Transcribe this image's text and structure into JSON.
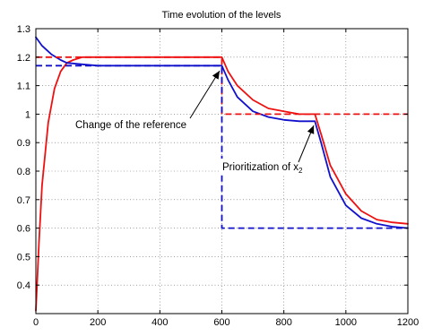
{
  "chart_data": {
    "type": "line",
    "title": "Time evolution of the levels",
    "xlabel": "",
    "ylabel": "",
    "xlim": [
      0,
      1200
    ],
    "ylim": [
      0.3,
      1.3
    ],
    "xticks": [
      "0",
      "200",
      "400",
      "600",
      "800",
      "1000",
      "1200"
    ],
    "yticks": [
      "0.4",
      "0.5",
      "0.6",
      "0.7",
      "0.8",
      "0.9",
      "1",
      "1.1",
      "1.2",
      "1.3"
    ],
    "grid": true,
    "colors": {
      "red": "#ee1111",
      "blue": "#1111cc"
    },
    "series": [
      {
        "style": "solid",
        "color": "#ee1111",
        "x": [
          0,
          10,
          20,
          40,
          60,
          80,
          100,
          120,
          150,
          200,
          300,
          400,
          500,
          600,
          620,
          650,
          700,
          750,
          800,
          850,
          900,
          920,
          950,
          1000,
          1050,
          1100,
          1150,
          1200
        ],
        "y": [
          0.31,
          0.55,
          0.75,
          0.97,
          1.09,
          1.15,
          1.18,
          1.19,
          1.2,
          1.2,
          1.2,
          1.2,
          1.2,
          1.2,
          1.15,
          1.1,
          1.05,
          1.02,
          1.01,
          1.0,
          1.0,
          0.93,
          0.82,
          0.72,
          0.66,
          0.63,
          0.62,
          0.615
        ]
      },
      {
        "style": "solid",
        "color": "#1111cc",
        "x": [
          0,
          20,
          50,
          80,
          100,
          150,
          200,
          300,
          400,
          500,
          600,
          620,
          650,
          700,
          750,
          800,
          850,
          900,
          920,
          950,
          1000,
          1050,
          1100,
          1150,
          1200
        ],
        "y": [
          1.27,
          1.24,
          1.21,
          1.19,
          1.18,
          1.175,
          1.17,
          1.17,
          1.17,
          1.17,
          1.17,
          1.12,
          1.06,
          1.01,
          0.99,
          0.98,
          0.975,
          0.975,
          0.9,
          0.78,
          0.68,
          0.635,
          0.615,
          0.605,
          0.6
        ]
      },
      {
        "style": "dashed",
        "color": "#ee1111",
        "x": [
          0,
          600,
          600,
          1200
        ],
        "y": [
          1.2,
          1.2,
          1.0,
          1.0
        ]
      },
      {
        "style": "dashed",
        "color": "#1111cc",
        "x": [
          0,
          600,
          600,
          1200
        ],
        "y": [
          1.17,
          1.17,
          0.6,
          0.6
        ]
      }
    ],
    "annotations": [
      {
        "text": "Change of the reference",
        "arrow_to": [
          600,
          1.175
        ]
      },
      {
        "text": "Prioritization of x",
        "subscript": "2",
        "arrow_to": [
          905,
          0.985
        ]
      }
    ]
  }
}
